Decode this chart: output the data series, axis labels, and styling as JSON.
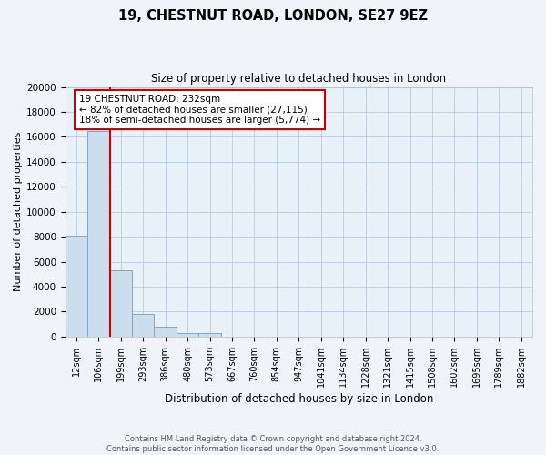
{
  "title": "19, CHESTNUT ROAD, LONDON, SE27 9EZ",
  "subtitle": "Size of property relative to detached houses in London",
  "xlabel": "Distribution of detached houses by size in London",
  "ylabel": "Number of detached properties",
  "bar_labels": [
    "12sqm",
    "106sqm",
    "199sqm",
    "293sqm",
    "386sqm",
    "480sqm",
    "573sqm",
    "667sqm",
    "760sqm",
    "854sqm",
    "947sqm",
    "1041sqm",
    "1134sqm",
    "1228sqm",
    "1321sqm",
    "1415sqm",
    "1508sqm",
    "1602sqm",
    "1695sqm",
    "1789sqm",
    "1882sqm"
  ],
  "bar_values": [
    8100,
    16500,
    5300,
    1800,
    800,
    300,
    300,
    0,
    0,
    0,
    0,
    0,
    0,
    0,
    0,
    0,
    0,
    0,
    0,
    0,
    0
  ],
  "bar_color": "#ccdded",
  "bar_edgecolor": "#7aaac8",
  "ylim": [
    0,
    20000
  ],
  "yticks": [
    0,
    2000,
    4000,
    6000,
    8000,
    10000,
    12000,
    14000,
    16000,
    18000,
    20000
  ],
  "annotation_title": "19 CHESTNUT ROAD: 232sqm",
  "annotation_line1": "← 82% of detached houses are smaller (27,115)",
  "annotation_line2": "18% of semi-detached houses are larger (5,774) →",
  "annotation_box_color": "#ffffff",
  "annotation_box_edgecolor": "#cc0000",
  "vline_color": "#cc0000",
  "grid_color": "#c0d0e0",
  "background_color": "#e8f0f8",
  "fig_background_color": "#f0f4f8",
  "footer_line1": "Contains HM Land Registry data © Crown copyright and database right 2024.",
  "footer_line2": "Contains public sector information licensed under the Open Government Licence v3.0."
}
